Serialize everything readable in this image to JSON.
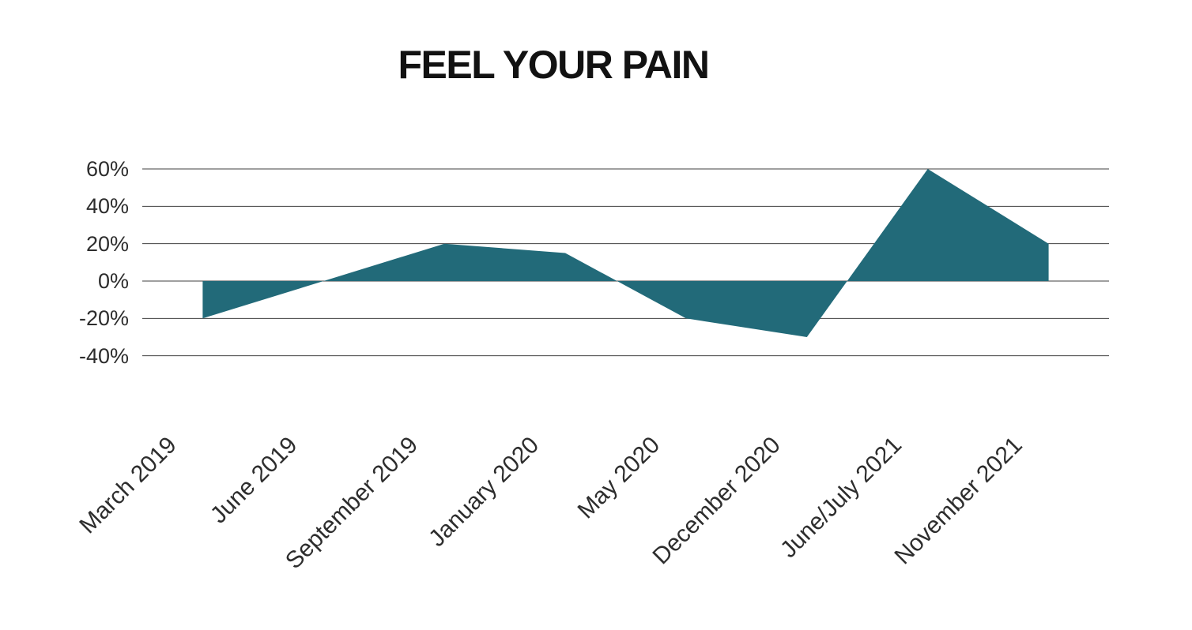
{
  "chart_data": {
    "type": "area",
    "title": "FEEL YOUR PAIN",
    "categories": [
      "March 2019",
      "June 2019",
      "September 2019",
      "January 2020",
      "May 2020",
      "December 2020",
      "June/July 2021",
      "November 2021"
    ],
    "series": [
      {
        "name": "pain",
        "values": [
          -20,
          0,
          20,
          15,
          -20,
          -30,
          60,
          20
        ]
      }
    ],
    "value_unit": "%",
    "ylim": [
      -40,
      60
    ],
    "yticks": [
      {
        "value": 60,
        "label": "60%"
      },
      {
        "value": 40,
        "label": "40%"
      },
      {
        "value": 20,
        "label": "20%"
      },
      {
        "value": 0,
        "label": "0%"
      },
      {
        "value": -20,
        "label": "-20%"
      },
      {
        "value": -40,
        "label": "-40%"
      }
    ],
    "baseline": 0,
    "grid": true,
    "legend": "none",
    "colors": {
      "area_fill": "#226A79",
      "gridline": "#3f3f3f",
      "axis_label": "#2d2d2d",
      "title": "#121212",
      "background": "#ffffff"
    }
  }
}
